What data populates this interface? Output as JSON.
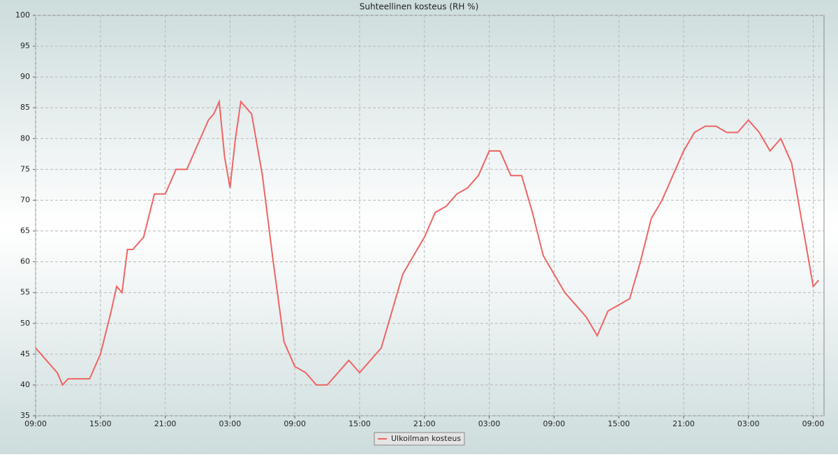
{
  "chart_data": {
    "type": "line",
    "title": "Suhteellinen kosteus (RH %)",
    "x": [
      0,
      0.5,
      1,
      1.5,
      2,
      2.5,
      3,
      4,
      5,
      6,
      7,
      7.5,
      8,
      8.5,
      9,
      10,
      11,
      12,
      13,
      14,
      15,
      16,
      16.5,
      17,
      17.5,
      18,
      18.5,
      19,
      20,
      21,
      22,
      23,
      24,
      25,
      26,
      27,
      28,
      29,
      30,
      31,
      32,
      33,
      34,
      35,
      36,
      37,
      38,
      39,
      40,
      41,
      42,
      43,
      44,
      45,
      46,
      47,
      48,
      49,
      50,
      51,
      52,
      53,
      54,
      55,
      56,
      57,
      58,
      59,
      60,
      61,
      62,
      63,
      64,
      65,
      66,
      67,
      68,
      69,
      70,
      71,
      72,
      72.5
    ],
    "series": [
      {
        "name": "Ulkoilman kosteus",
        "color": "#f06464",
        "values": [
          46,
          45,
          44,
          43,
          42,
          40,
          41,
          41,
          41,
          45,
          52,
          56,
          55,
          62,
          62,
          64,
          71,
          71,
          75,
          75,
          79,
          83,
          84,
          86,
          77,
          72,
          80,
          86,
          84,
          74,
          60,
          47,
          43,
          42,
          40,
          40,
          42,
          44,
          42,
          44,
          46,
          52,
          58,
          61,
          64,
          68,
          69,
          71,
          72,
          74,
          78,
          78,
          74,
          74,
          68,
          61,
          58,
          55,
          53,
          51,
          48,
          52,
          53,
          54,
          60,
          67,
          70,
          74,
          78,
          81,
          82,
          82,
          81,
          81,
          83,
          81,
          78,
          80,
          76,
          66,
          56,
          57
        ]
      }
    ],
    "xlim": [
      0,
      73
    ],
    "xticks": [
      {
        "value": 0,
        "label": "09:00"
      },
      {
        "value": 6,
        "label": "15:00"
      },
      {
        "value": 12,
        "label": "21:00"
      },
      {
        "value": 18,
        "label": "03:00"
      },
      {
        "value": 24,
        "label": "09:00"
      },
      {
        "value": 30,
        "label": "15:00"
      },
      {
        "value": 36,
        "label": "21:00"
      },
      {
        "value": 42,
        "label": "03:00"
      },
      {
        "value": 48,
        "label": "09:00"
      },
      {
        "value": 54,
        "label": "15:00"
      },
      {
        "value": 60,
        "label": "21:00"
      },
      {
        "value": 66,
        "label": "03:00"
      },
      {
        "value": 72,
        "label": "09:00"
      }
    ],
    "ylim": [
      35,
      100
    ],
    "yticks": [
      35,
      40,
      45,
      50,
      55,
      60,
      65,
      70,
      75,
      80,
      85,
      90,
      95,
      100
    ],
    "grid": true
  }
}
